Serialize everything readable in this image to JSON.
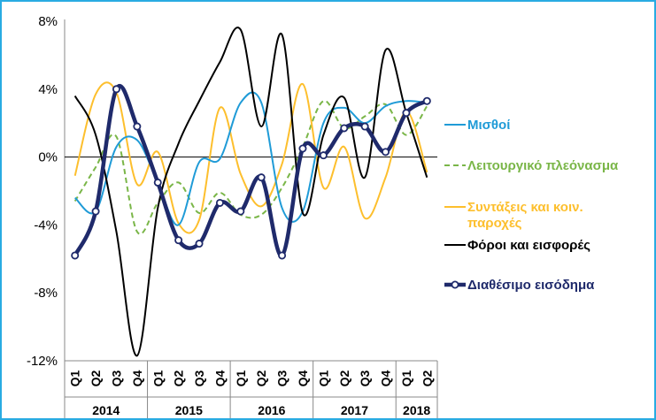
{
  "chart_data": {
    "type": "line",
    "title": "",
    "xlabel": "",
    "ylabel": "",
    "ylim": [
      -12,
      8
    ],
    "yticks": [
      8,
      4,
      0,
      -4,
      -8,
      -12
    ],
    "ytick_labels": [
      "8%",
      "4%",
      "0%",
      "-4%",
      "-8%",
      "-12%"
    ],
    "categories": [
      "Q1",
      "Q2",
      "Q3",
      "Q4",
      "Q1",
      "Q2",
      "Q3",
      "Q4",
      "Q1",
      "Q2",
      "Q3",
      "Q4",
      "Q1",
      "Q2",
      "Q3",
      "Q4",
      "Q1",
      "Q2"
    ],
    "years": [
      {
        "label": "2014",
        "start": 0,
        "end": 3
      },
      {
        "label": "2015",
        "start": 4,
        "end": 7
      },
      {
        "label": "2016",
        "start": 8,
        "end": 11
      },
      {
        "label": "2017",
        "start": 12,
        "end": 15
      },
      {
        "label": "2018",
        "start": 16,
        "end": 17
      }
    ],
    "legend_position": "right",
    "series": [
      {
        "name": "Μισθοί",
        "color": "#1F9BD7",
        "style": "solid",
        "marker": false,
        "values": [
          -2.4,
          -3.2,
          0.6,
          1.0,
          -1.5,
          -4.0,
          -0.3,
          -0.1,
          3.2,
          3.2,
          -3.0,
          -3.2,
          2.0,
          2.9,
          2.0,
          3.0,
          3.3,
          3.2
        ]
      },
      {
        "name": "Λειτουργικό πλεόνασμα",
        "color": "#7AB648",
        "style": "dashed",
        "marker": false,
        "values": [
          -2.6,
          -0.6,
          1.2,
          -4.4,
          -2.7,
          -1.5,
          -3.3,
          -2.1,
          -3.4,
          -3.4,
          -1.8,
          0.6,
          3.3,
          1.7,
          2.4,
          3.1,
          1.3,
          3.0
        ]
      },
      {
        "name": "Συντάξεις και κοιν. παροχές",
        "color": "#FDBF2D",
        "style": "solid",
        "marker": false,
        "values": [
          -1.1,
          3.7,
          3.8,
          -1.6,
          0.3,
          -3.9,
          -3.7,
          2.9,
          -1.0,
          -2.9,
          -0.4,
          4.3,
          -1.8,
          0.6,
          -3.6,
          -1.2,
          2.7,
          -0.9
        ]
      },
      {
        "name": "Φόροι και εισφορές",
        "color": "#000000",
        "style": "solid",
        "marker": false,
        "values": [
          3.6,
          1.3,
          -4.4,
          -11.7,
          -3.0,
          0.8,
          3.3,
          5.6,
          7.5,
          1.8,
          7.2,
          -3.3,
          1.3,
          3.5,
          -1.2,
          6.3,
          2.6,
          -1.2
        ]
      },
      {
        "name": "Διαθέσιμο εισόδημα",
        "color": "#1F2A6B",
        "style": "solid",
        "marker": true,
        "values": [
          -5.8,
          -3.2,
          4.0,
          1.8,
          -1.5,
          -4.9,
          -5.1,
          -2.7,
          -3.2,
          -1.2,
          -5.8,
          0.5,
          0.1,
          1.7,
          1.8,
          0.3,
          2.6,
          3.3
        ]
      }
    ]
  }
}
